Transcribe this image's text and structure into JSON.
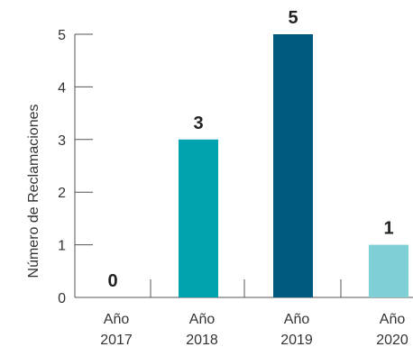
{
  "chart_data": {
    "type": "bar",
    "categories": [
      {
        "line1": "Año",
        "line2": "2017"
      },
      {
        "line1": "Año",
        "line2": "2018"
      },
      {
        "line1": "Año",
        "line2": "2019"
      },
      {
        "line1": "Año",
        "line2": "2020"
      }
    ],
    "values": [
      0,
      3,
      5,
      1
    ],
    "value_labels": [
      "0",
      "3",
      "5",
      "1"
    ],
    "colors": [
      "#00a2ad",
      "#00a2ad",
      "#005a7f",
      "#7fd0d6"
    ],
    "ylabel": "Número de Reclamaciones",
    "xlabel": "",
    "ylim": [
      0,
      5
    ],
    "yticks": [
      0,
      1,
      2,
      3,
      4,
      5
    ],
    "ytick_labels": [
      "0",
      "1",
      "2",
      "3",
      "4",
      "5"
    ],
    "grid": false,
    "legend": "none"
  }
}
